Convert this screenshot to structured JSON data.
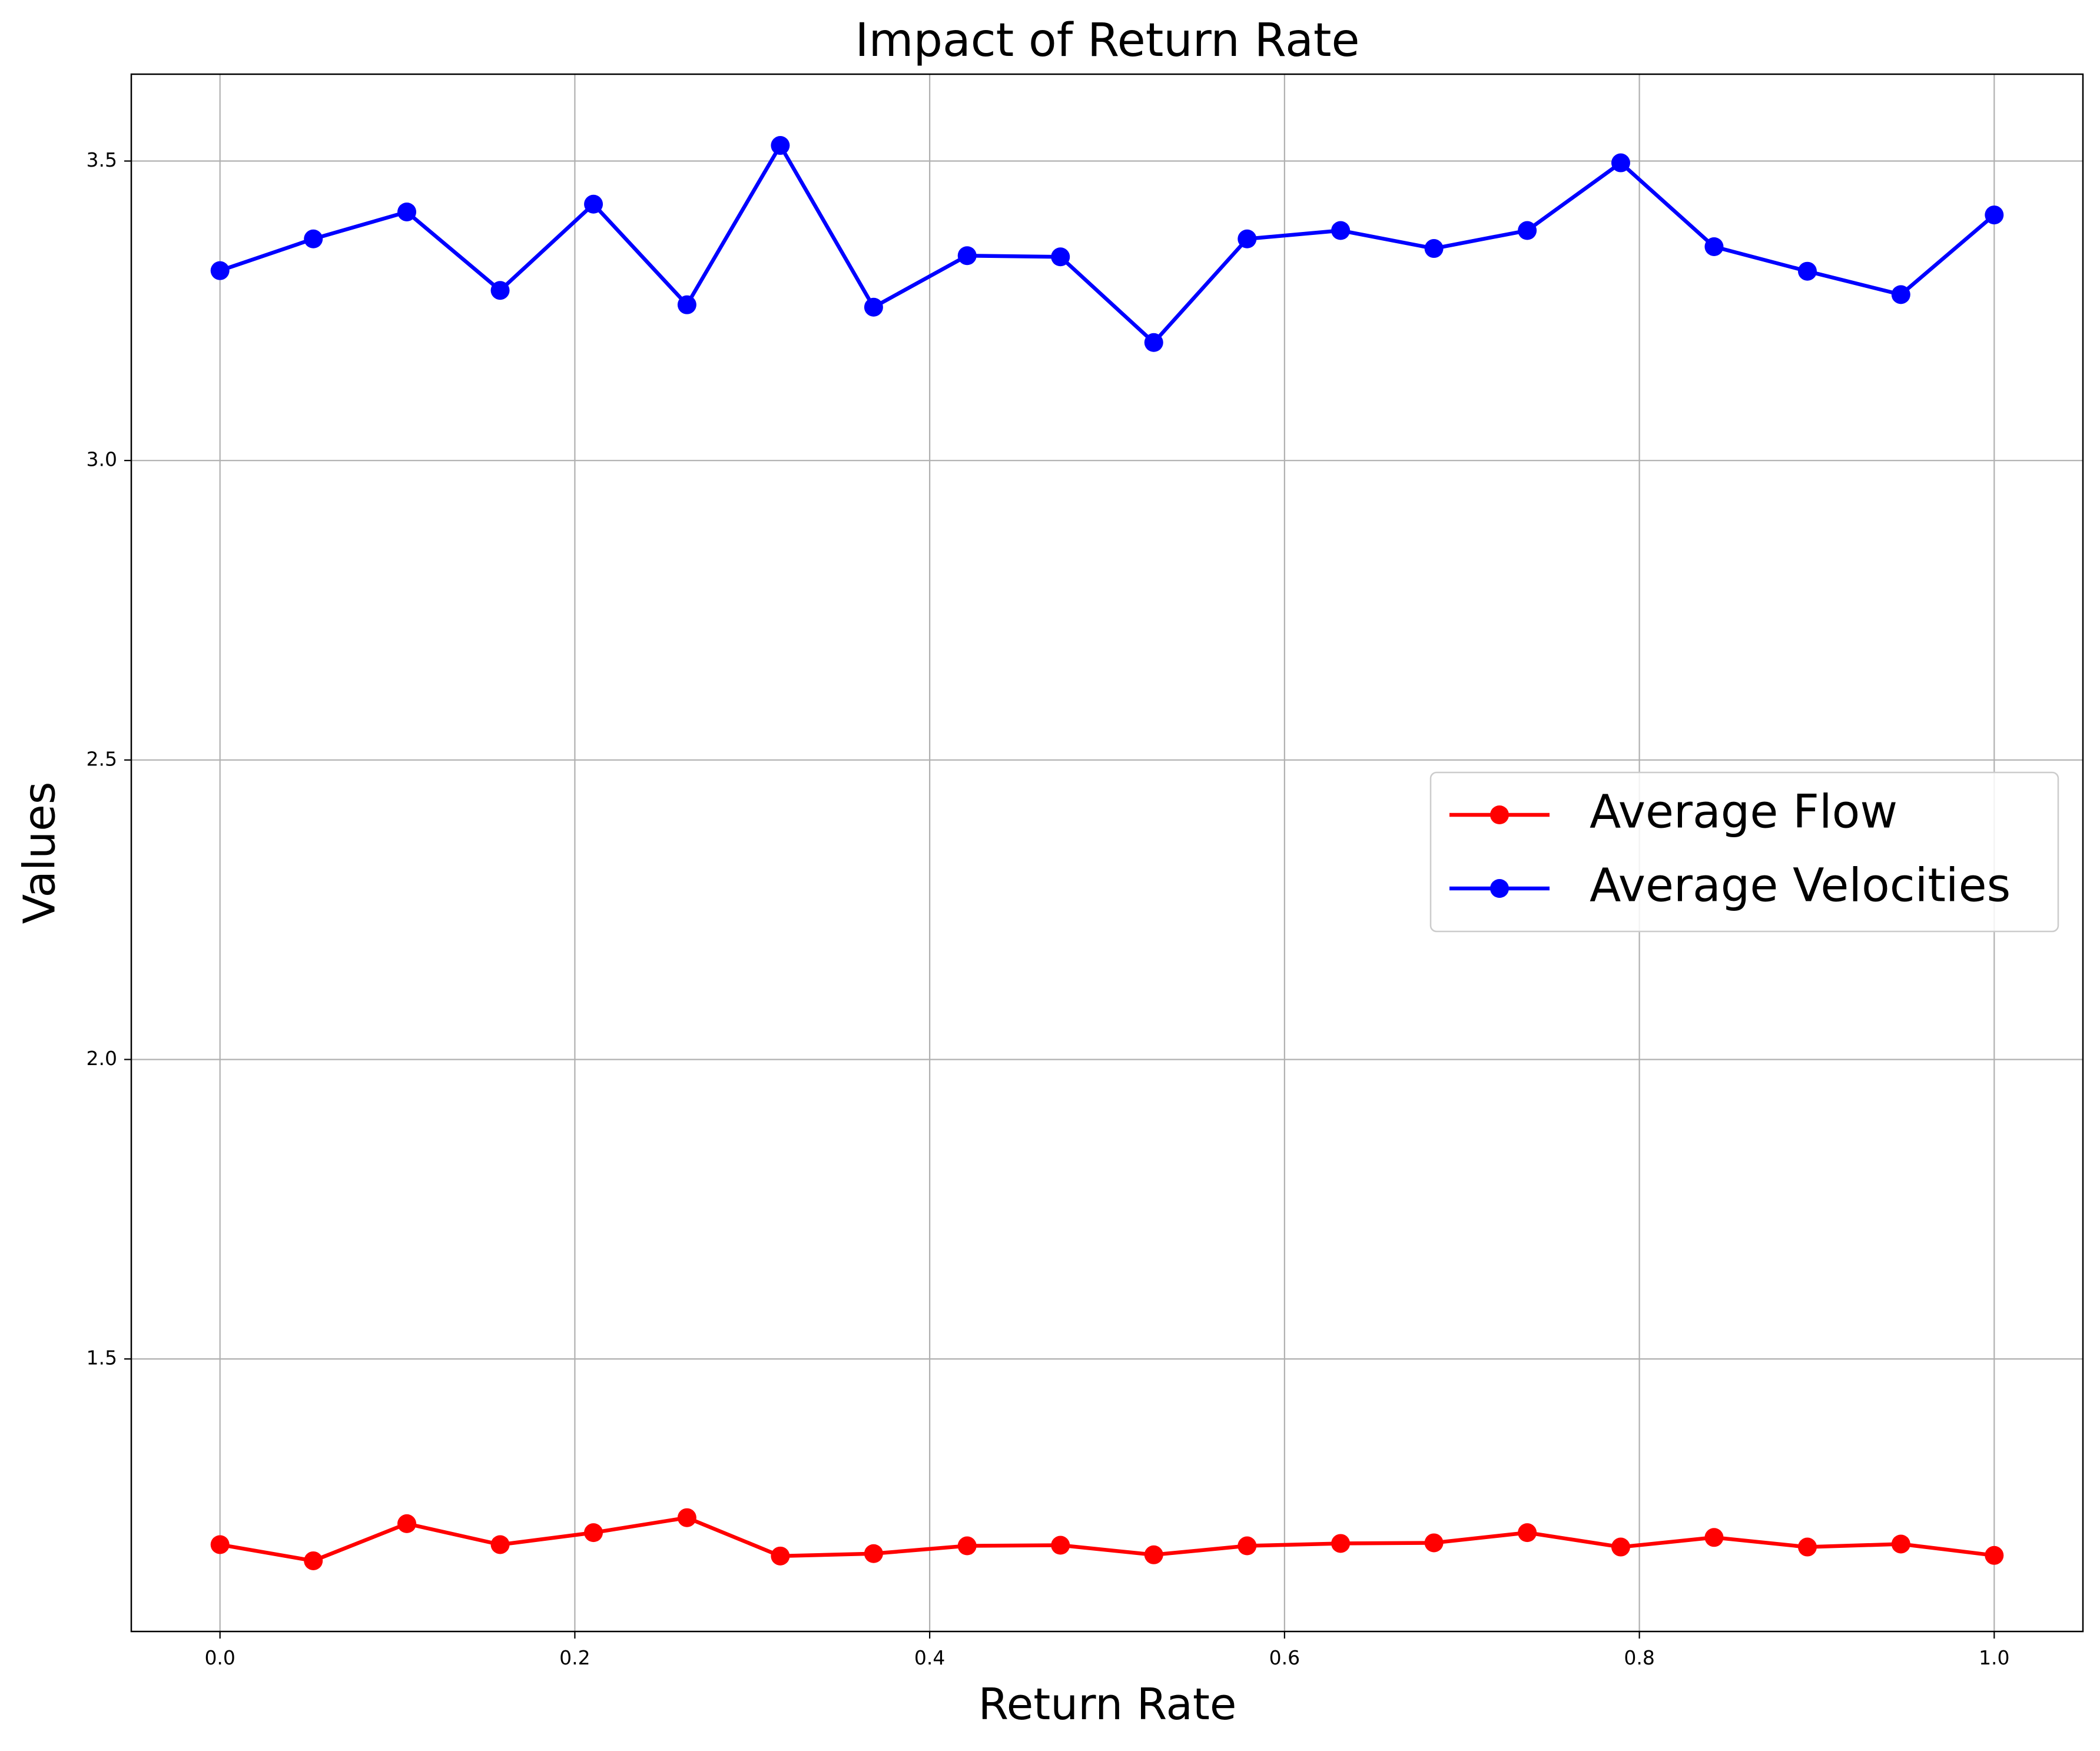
{
  "chart_data": {
    "type": "line",
    "title": "Impact of Return Rate",
    "xlabel": "Return Rate",
    "ylabel": "Values",
    "xlim": [
      -0.05,
      1.05
    ],
    "ylim": [
      1.045,
      3.645
    ],
    "xticks": [
      0.0,
      0.2,
      0.4,
      0.6,
      0.8,
      1.0
    ],
    "xtick_labels": [
      "0.0",
      "0.2",
      "0.4",
      "0.6",
      "0.8",
      "1.0"
    ],
    "yticks": [
      1.5,
      2.0,
      2.5,
      3.0,
      3.5
    ],
    "ytick_labels": [
      "1.5",
      "2.0",
      "2.5",
      "3.0",
      "3.5"
    ],
    "grid": true,
    "legend_position": "center-right",
    "x": [
      0.0,
      0.0526,
      0.1053,
      0.1579,
      0.2105,
      0.2632,
      0.3158,
      0.3684,
      0.4211,
      0.4737,
      0.5263,
      0.5789,
      0.6316,
      0.6842,
      0.7368,
      0.7895,
      0.8421,
      0.8947,
      0.9474,
      1.0
    ],
    "series": [
      {
        "name": "Average Flow",
        "color": "#ff0000",
        "marker": "circle",
        "values": [
          1.19,
          1.163,
          1.225,
          1.19,
          1.21,
          1.235,
          1.171,
          1.175,
          1.188,
          1.189,
          1.173,
          1.188,
          1.192,
          1.193,
          1.21,
          1.186,
          1.202,
          1.186,
          1.191,
          1.172
        ]
      },
      {
        "name": "Average Velocities",
        "color": "#0000ff",
        "marker": "circle",
        "values": [
          3.317,
          3.37,
          3.415,
          3.284,
          3.428,
          3.26,
          3.526,
          3.256,
          3.342,
          3.34,
          3.197,
          3.37,
          3.384,
          3.354,
          3.384,
          3.497,
          3.357,
          3.316,
          3.277,
          3.41
        ]
      }
    ]
  }
}
